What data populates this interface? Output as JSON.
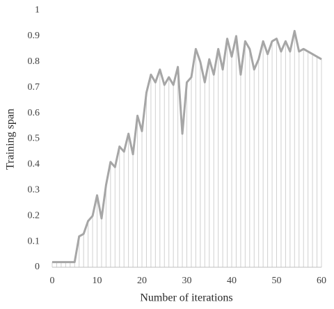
{
  "chart_data": {
    "type": "line",
    "x_label": "Number of iterations",
    "y_label": "Training span",
    "x": [
      0,
      1,
      2,
      3,
      4,
      5,
      6,
      7,
      8,
      9,
      10,
      11,
      12,
      13,
      14,
      15,
      16,
      17,
      18,
      19,
      20,
      21,
      22,
      23,
      24,
      25,
      26,
      27,
      28,
      29,
      30,
      31,
      32,
      33,
      34,
      35,
      36,
      37,
      38,
      39,
      40,
      41,
      42,
      43,
      44,
      45,
      46,
      47,
      48,
      49,
      50,
      51,
      52,
      53,
      54,
      55,
      56,
      57,
      58,
      59,
      60
    ],
    "series": [
      {
        "color": "#a6a6a6",
        "values": [
          0.02,
          0.02,
          0.02,
          0.02,
          0.02,
          0.02,
          0.12,
          0.13,
          0.18,
          0.2,
          0.28,
          0.19,
          0.32,
          0.41,
          0.39,
          0.47,
          0.45,
          0.52,
          0.44,
          0.59,
          0.53,
          0.68,
          0.75,
          0.72,
          0.77,
          0.71,
          0.74,
          0.71,
          0.78,
          0.52,
          0.72,
          0.74,
          0.85,
          0.8,
          0.72,
          0.81,
          0.75,
          0.85,
          0.77,
          0.89,
          0.82,
          0.9,
          0.75,
          0.88,
          0.85,
          0.77,
          0.81,
          0.88,
          0.83,
          0.88,
          0.89,
          0.84,
          0.88,
          0.84,
          0.92,
          0.84,
          0.85,
          0.84,
          0.83,
          0.82,
          0.81
        ]
      }
    ],
    "drop_line_color": "#d0d0d0",
    "xlim": [
      0,
      60
    ],
    "xticks": [
      0,
      10,
      20,
      30,
      40,
      50,
      60
    ],
    "ylim": [
      0,
      1
    ],
    "yticks": [
      0,
      0.1,
      0.2,
      0.3,
      0.4,
      0.5,
      0.6,
      0.7,
      0.8,
      0.9,
      1
    ]
  }
}
